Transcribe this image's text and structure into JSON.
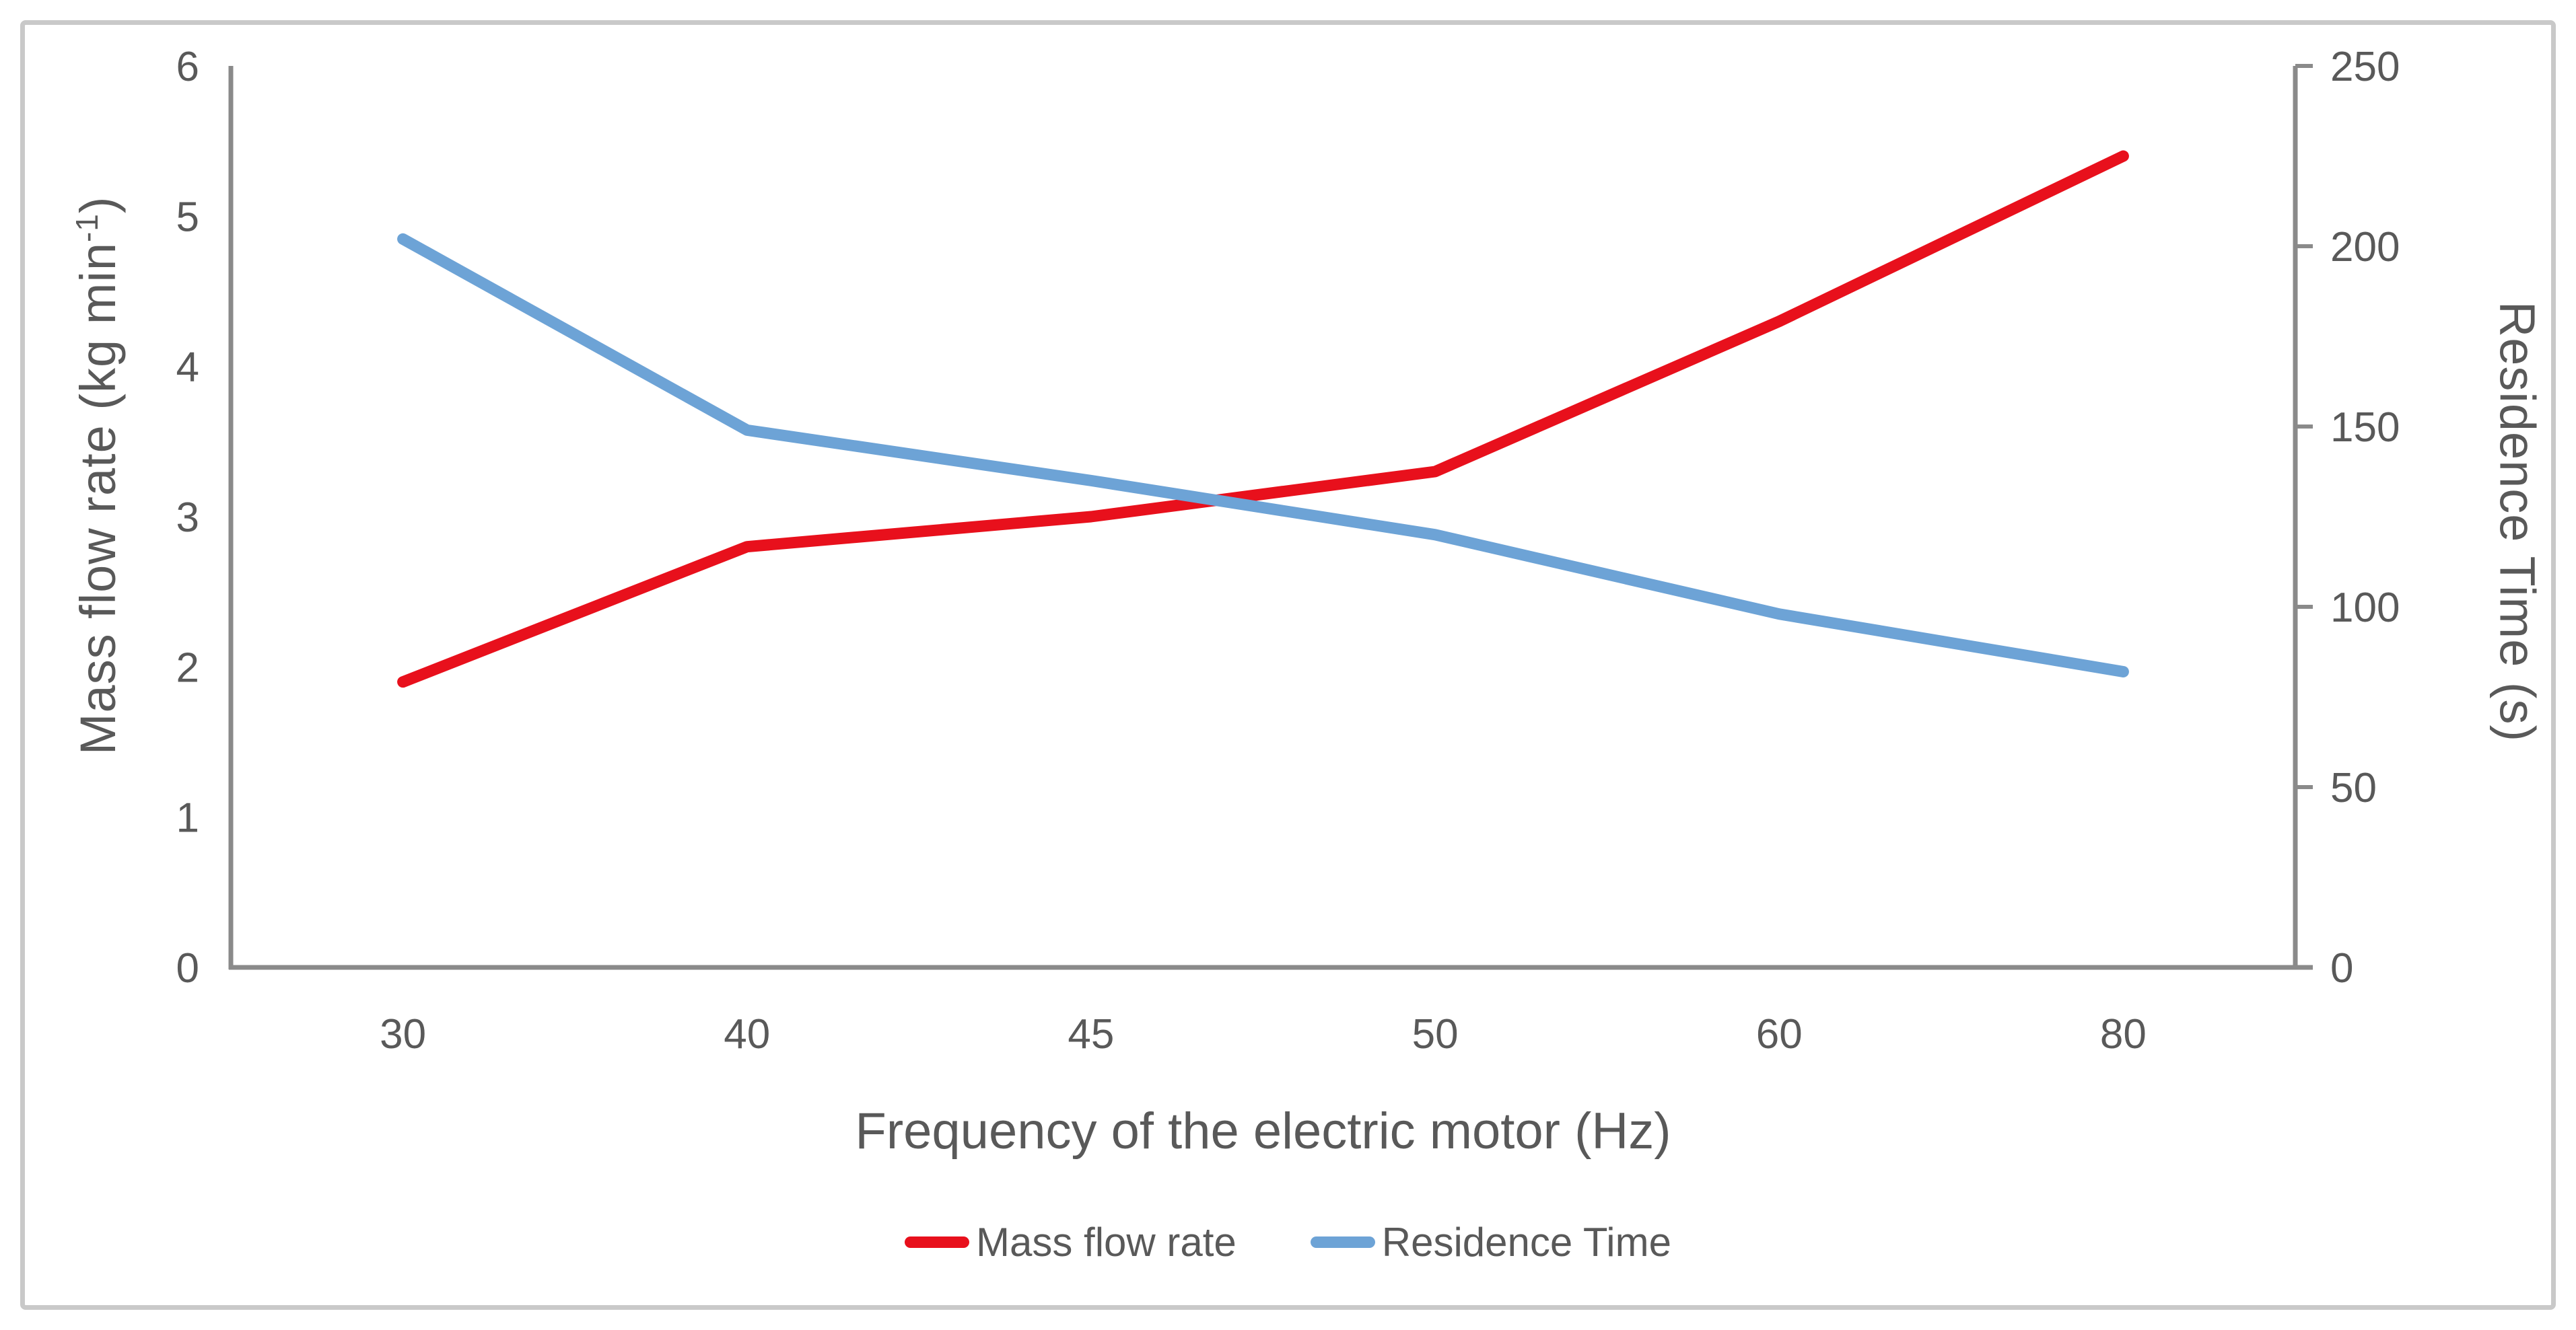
{
  "frame": {
    "border_color": "#c9c9c9",
    "background": "#ffffff"
  },
  "chart_data": {
    "type": "line",
    "x_categories": [
      30,
      40,
      45,
      50,
      60,
      80
    ],
    "xlabel": "Frequency of the electric motor (Hz)",
    "series": [
      {
        "name": "Mass flow rate",
        "axis": "left",
        "color": "#e8101c",
        "values": [
          1.9,
          2.8,
          3.0,
          3.3,
          4.3,
          5.4
        ]
      },
      {
        "name": "Residence Time",
        "axis": "right",
        "color": "#6da3d6",
        "values": [
          202,
          149,
          135,
          120,
          98,
          82
        ]
      }
    ],
    "left_axis": {
      "title_prefix": "Mass flow rate (kg min",
      "title_sup": "-1",
      "title_suffix": ")",
      "min": 0,
      "max": 6,
      "ticks": [
        6,
        5,
        4,
        3,
        2,
        1,
        0
      ]
    },
    "right_axis": {
      "title": "Residence Time (s)",
      "min": 0,
      "max": 250,
      "ticks": [
        250,
        200,
        150,
        100,
        50,
        0
      ]
    },
    "legend_position": "bottom",
    "grid": false,
    "text_color": "#595959",
    "axis_line_color": "#8a8a8a"
  }
}
